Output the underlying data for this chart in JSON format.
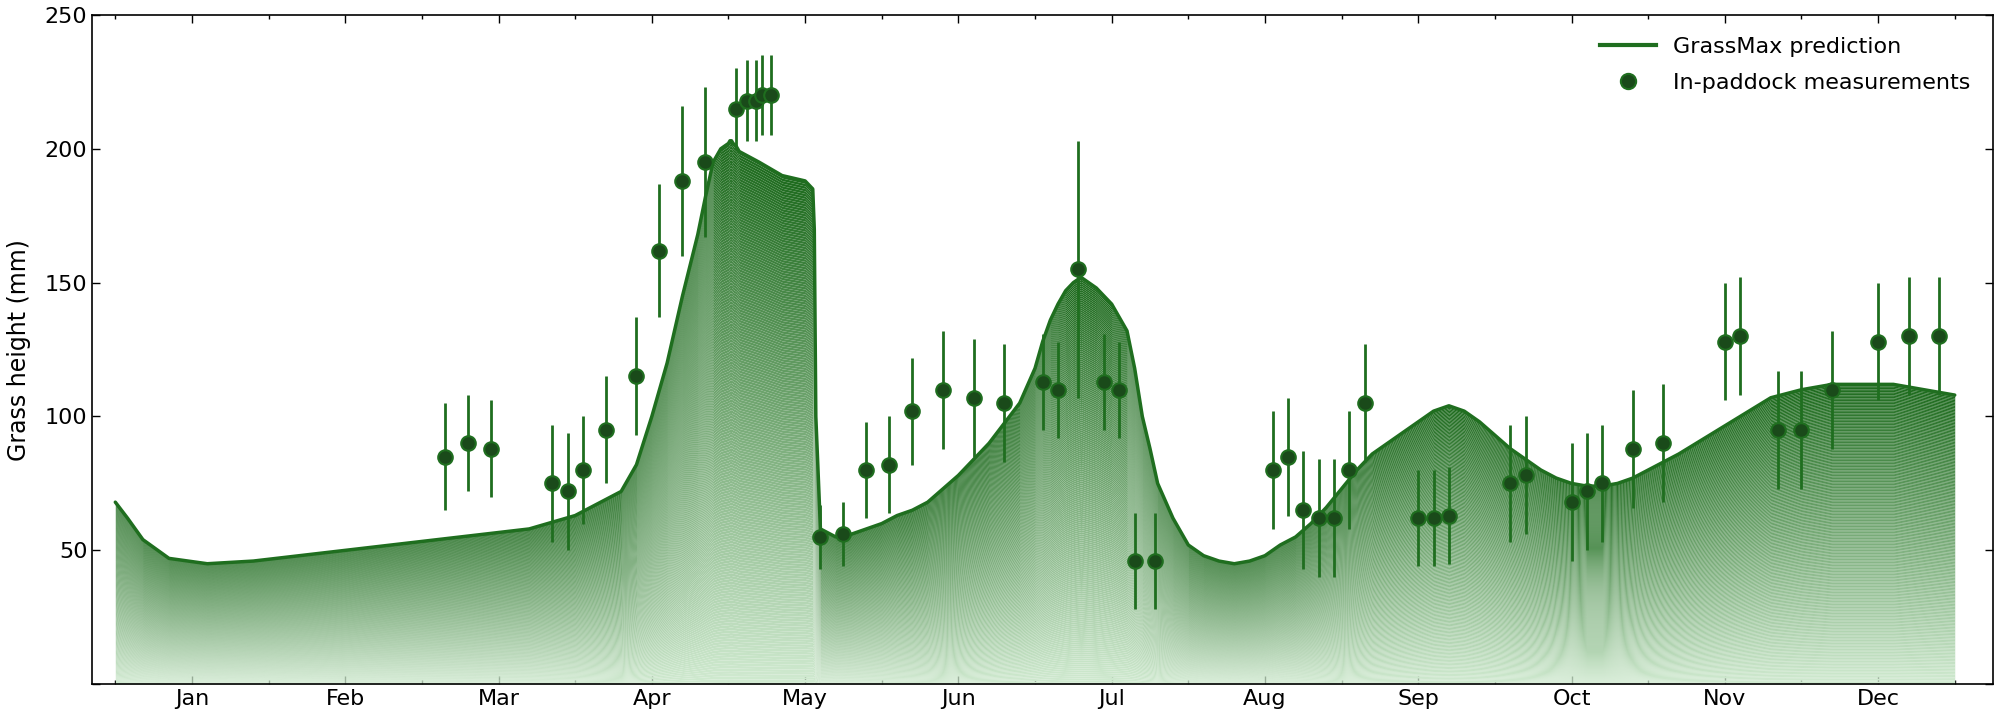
{
  "ylabel": "Grass height (mm)",
  "ylim": [
    0,
    250
  ],
  "line_color": "#1f6e1f",
  "scatter_face_color": "#1a4a1a",
  "scatter_edge_color": "#1f6e1f",
  "errorbar_color": "#1f6e1f",
  "months": [
    "Jan",
    "Feb",
    "Mar",
    "Apr",
    "May",
    "Jun",
    "Jul",
    "Aug",
    "Sep",
    "Oct",
    "Nov",
    "Dec"
  ],
  "line_x": [
    0.0,
    0.08,
    0.18,
    0.35,
    0.6,
    0.9,
    1.2,
    1.5,
    1.8,
    2.1,
    2.4,
    2.7,
    3.0,
    3.1,
    3.2,
    3.3,
    3.4,
    3.5,
    3.6,
    3.7,
    3.8,
    3.85,
    3.9,
    3.95,
    4.0,
    4.01,
    4.02,
    4.03,
    4.05,
    4.06,
    4.07,
    4.2,
    4.35,
    4.5,
    4.55,
    4.56,
    4.57,
    4.6,
    4.7,
    4.8,
    4.9,
    5.0,
    5.1,
    5.2,
    5.3,
    5.5,
    5.7,
    5.9,
    6.0,
    6.05,
    6.1,
    6.15,
    6.2,
    6.25,
    6.3,
    6.4,
    6.5,
    6.6,
    6.65,
    6.7,
    6.75,
    6.8,
    6.9,
    7.0,
    7.1,
    7.2,
    7.3,
    7.4,
    7.5,
    7.6,
    7.7,
    7.8,
    7.9,
    8.0,
    8.1,
    8.2,
    8.3,
    8.4,
    8.5,
    8.6,
    8.7,
    8.8,
    8.9,
    9.0,
    9.1,
    9.2,
    9.3,
    9.4,
    9.5,
    9.6,
    9.7,
    9.8,
    9.9,
    10.0,
    10.2,
    10.4,
    10.6,
    10.8,
    11.0,
    11.2,
    11.4,
    11.6,
    11.8,
    12.0
  ],
  "line_y": [
    68,
    62,
    54,
    47,
    45,
    46,
    48,
    50,
    52,
    54,
    56,
    58,
    63,
    66,
    69,
    72,
    82,
    100,
    120,
    145,
    168,
    182,
    195,
    200,
    202,
    203,
    203,
    202,
    201,
    200,
    199,
    195,
    190,
    188,
    185,
    170,
    100,
    58,
    55,
    56,
    58,
    60,
    63,
    65,
    68,
    78,
    90,
    105,
    118,
    128,
    136,
    142,
    147,
    150,
    152,
    148,
    142,
    132,
    118,
    100,
    88,
    75,
    62,
    52,
    48,
    46,
    45,
    46,
    48,
    52,
    55,
    60,
    66,
    73,
    80,
    86,
    90,
    94,
    98,
    102,
    104,
    102,
    98,
    93,
    88,
    84,
    80,
    77,
    75,
    74,
    74,
    75,
    77,
    80,
    86,
    93,
    100,
    107,
    110,
    112,
    112,
    112,
    110,
    108
  ],
  "scatter_x": [
    2.15,
    2.3,
    2.45,
    2.85,
    2.95,
    3.05,
    3.2,
    3.4,
    3.55,
    3.7,
    3.85,
    4.05,
    4.12,
    4.18,
    4.22,
    4.28,
    4.6,
    4.75,
    4.9,
    5.05,
    5.2,
    5.4,
    5.6,
    5.8,
    6.05,
    6.15,
    6.28,
    6.45,
    6.55,
    6.65,
    6.78,
    7.55,
    7.65,
    7.75,
    7.85,
    7.95,
    8.05,
    8.15,
    8.5,
    8.6,
    8.7,
    9.1,
    9.2,
    9.5,
    9.6,
    9.7,
    9.9,
    10.1,
    10.5,
    10.6,
    10.85,
    11.0,
    11.2,
    11.5,
    11.7,
    11.9
  ],
  "scatter_y": [
    85,
    90,
    88,
    75,
    72,
    80,
    95,
    115,
    162,
    188,
    195,
    215,
    218,
    218,
    220,
    220,
    55,
    56,
    80,
    82,
    102,
    110,
    107,
    105,
    113,
    110,
    155,
    113,
    110,
    46,
    46,
    80,
    85,
    65,
    62,
    62,
    80,
    105,
    62,
    62,
    63,
    75,
    78,
    68,
    72,
    75,
    88,
    90,
    128,
    130,
    95,
    95,
    110,
    128,
    130,
    130
  ],
  "scatter_yerr": [
    20,
    18,
    18,
    22,
    22,
    20,
    20,
    22,
    25,
    28,
    28,
    15,
    15,
    15,
    15,
    15,
    12,
    12,
    18,
    18,
    20,
    22,
    22,
    22,
    18,
    18,
    48,
    18,
    18,
    18,
    18,
    22,
    22,
    22,
    22,
    22,
    22,
    22,
    18,
    18,
    18,
    22,
    22,
    22,
    22,
    22,
    22,
    22,
    22,
    22,
    22,
    22,
    22,
    22,
    22,
    22
  ]
}
